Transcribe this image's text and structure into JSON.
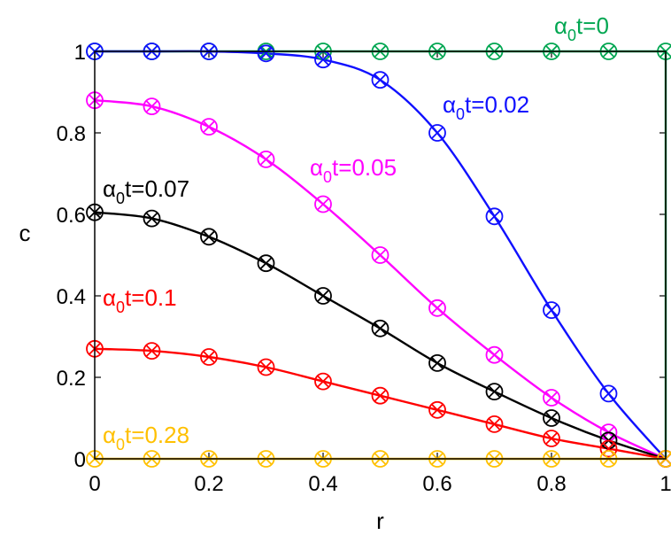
{
  "chart_data": {
    "type": "line",
    "title": "",
    "xlabel": "r",
    "ylabel": "c",
    "xlim": [
      0,
      1
    ],
    "ylim": [
      0,
      1
    ],
    "xticks": [
      "0",
      "0.2",
      "0.4",
      "0.6",
      "0.8",
      "1"
    ],
    "yticks": [
      "0",
      "0.2",
      "0.4",
      "0.6",
      "0.8",
      "1"
    ],
    "grid": false,
    "x": [
      0,
      0.1,
      0.2,
      0.3,
      0.4,
      0.5,
      0.6,
      0.7,
      0.8,
      0.9,
      1.0
    ],
    "series": [
      {
        "label_prefix": "α",
        "label_sub": "0",
        "label_suffix": "t=0",
        "color": "#00a651",
        "step_to_zero_at": 1.0,
        "values": [
          1,
          1,
          1,
          1,
          1,
          1,
          1,
          1,
          1,
          1,
          1
        ]
      },
      {
        "label_prefix": "α",
        "label_sub": "0",
        "label_suffix": "t=0.02",
        "color": "#1010ff",
        "values": [
          1.0,
          1.0,
          1.0,
          0.995,
          0.98,
          0.93,
          0.8,
          0.595,
          0.365,
          0.16,
          0.0
        ]
      },
      {
        "label_prefix": "α",
        "label_sub": "0",
        "label_suffix": "t=0.05",
        "color": "#ff00ff",
        "values": [
          0.88,
          0.865,
          0.815,
          0.735,
          0.625,
          0.5,
          0.37,
          0.255,
          0.15,
          0.065,
          0.0
        ]
      },
      {
        "label_prefix": "α",
        "label_sub": "0",
        "label_suffix": "t=0.07",
        "color": "#000000",
        "values": [
          0.605,
          0.59,
          0.545,
          0.48,
          0.4,
          0.32,
          0.235,
          0.165,
          0.1,
          0.045,
          0.0
        ]
      },
      {
        "label_prefix": "α",
        "label_sub": "0",
        "label_suffix": "t=0.1",
        "color": "#ff0000",
        "values": [
          0.27,
          0.265,
          0.25,
          0.225,
          0.19,
          0.155,
          0.12,
          0.085,
          0.05,
          0.025,
          0.0
        ]
      },
      {
        "label_prefix": "α",
        "label_sub": "0",
        "label_suffix": "t=0.28",
        "color": "#ffc000",
        "values": [
          0,
          0,
          0,
          0,
          0,
          0,
          0,
          0,
          0,
          0,
          0
        ]
      }
    ]
  }
}
